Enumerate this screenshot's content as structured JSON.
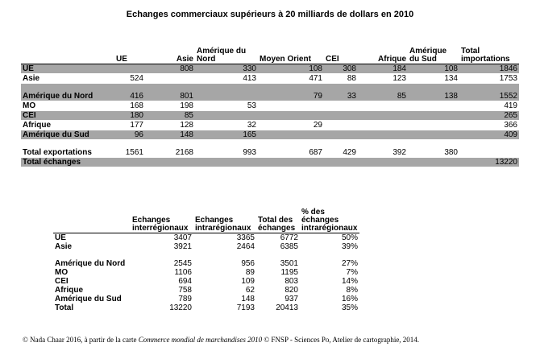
{
  "title": "Echanges commerciaux supérieurs à 20 milliards de dollars en 2010",
  "table1": {
    "columns": [
      "UE",
      "Asie",
      "Amérique du Nord",
      "Moyen Orient",
      "CEI",
      "Afrique",
      "Amérique du Sud",
      "Total importations"
    ],
    "rows": [
      {
        "label": "UE",
        "cells": [
          "",
          "808",
          "330",
          "108",
          "308",
          "184",
          "108",
          "1846"
        ]
      },
      {
        "label": "Asie",
        "cells": [
          "524",
          "",
          "413",
          "471",
          "88",
          "123",
          "134",
          "1753"
        ]
      },
      {
        "label": "Amérique du Nord",
        "cells": [
          "416",
          "801",
          "",
          "79",
          "33",
          "85",
          "138",
          "1552"
        ]
      },
      {
        "label": "MO",
        "cells": [
          "168",
          "198",
          "53",
          "",
          "",
          "",
          "",
          "419"
        ]
      },
      {
        "label": "CEI",
        "cells": [
          "180",
          "85",
          "",
          "",
          "",
          "",
          "",
          "265"
        ]
      },
      {
        "label": "Afrique",
        "cells": [
          "177",
          "128",
          "32",
          "29",
          "",
          "",
          "",
          "366"
        ]
      },
      {
        "label": "Amérique du Sud",
        "cells": [
          "96",
          "148",
          "165",
          "",
          "",
          "",
          "",
          "409"
        ]
      },
      {
        "label": "Total exportations",
        "cells": [
          "1561",
          "2168",
          "993",
          "687",
          "429",
          "392",
          "380",
          ""
        ]
      },
      {
        "label": "Total échanges",
        "cells": [
          "",
          "",
          "",
          "",
          "",
          "",
          "",
          "13220"
        ]
      }
    ]
  },
  "table2": {
    "columns": [
      "Echanges interrégionaux",
      "Echanges intrarégionaux",
      "Total des échanges",
      "% des échanges intrarégionaux"
    ],
    "rows": [
      {
        "label": "UE",
        "cells": [
          "3407",
          "3365",
          "6772",
          "50%"
        ]
      },
      {
        "label": "Asie",
        "cells": [
          "3921",
          "2464",
          "6385",
          "39%"
        ]
      },
      {
        "label": "Amérique du Nord",
        "cells": [
          "2545",
          "956",
          "3501",
          "27%"
        ]
      },
      {
        "label": "MO",
        "cells": [
          "1106",
          "89",
          "1195",
          "7%"
        ]
      },
      {
        "label": "CEI",
        "cells": [
          "694",
          "109",
          "803",
          "14%"
        ]
      },
      {
        "label": "Afrique",
        "cells": [
          "758",
          "62",
          "820",
          "8%"
        ]
      },
      {
        "label": "Amérique du Sud",
        "cells": [
          "789",
          "148",
          "937",
          "16%"
        ]
      },
      {
        "label": "Total",
        "cells": [
          "13220",
          "7193",
          "20413",
          "35%"
        ]
      }
    ]
  },
  "footer": {
    "prefix": "© Nada Chaar 2016, à partir de la carte ",
    "source_title": "Commerce mondial de marchandises 2010",
    "suffix": " © FNSP - Sciences Po, Atelier de cartographie, 2014."
  }
}
